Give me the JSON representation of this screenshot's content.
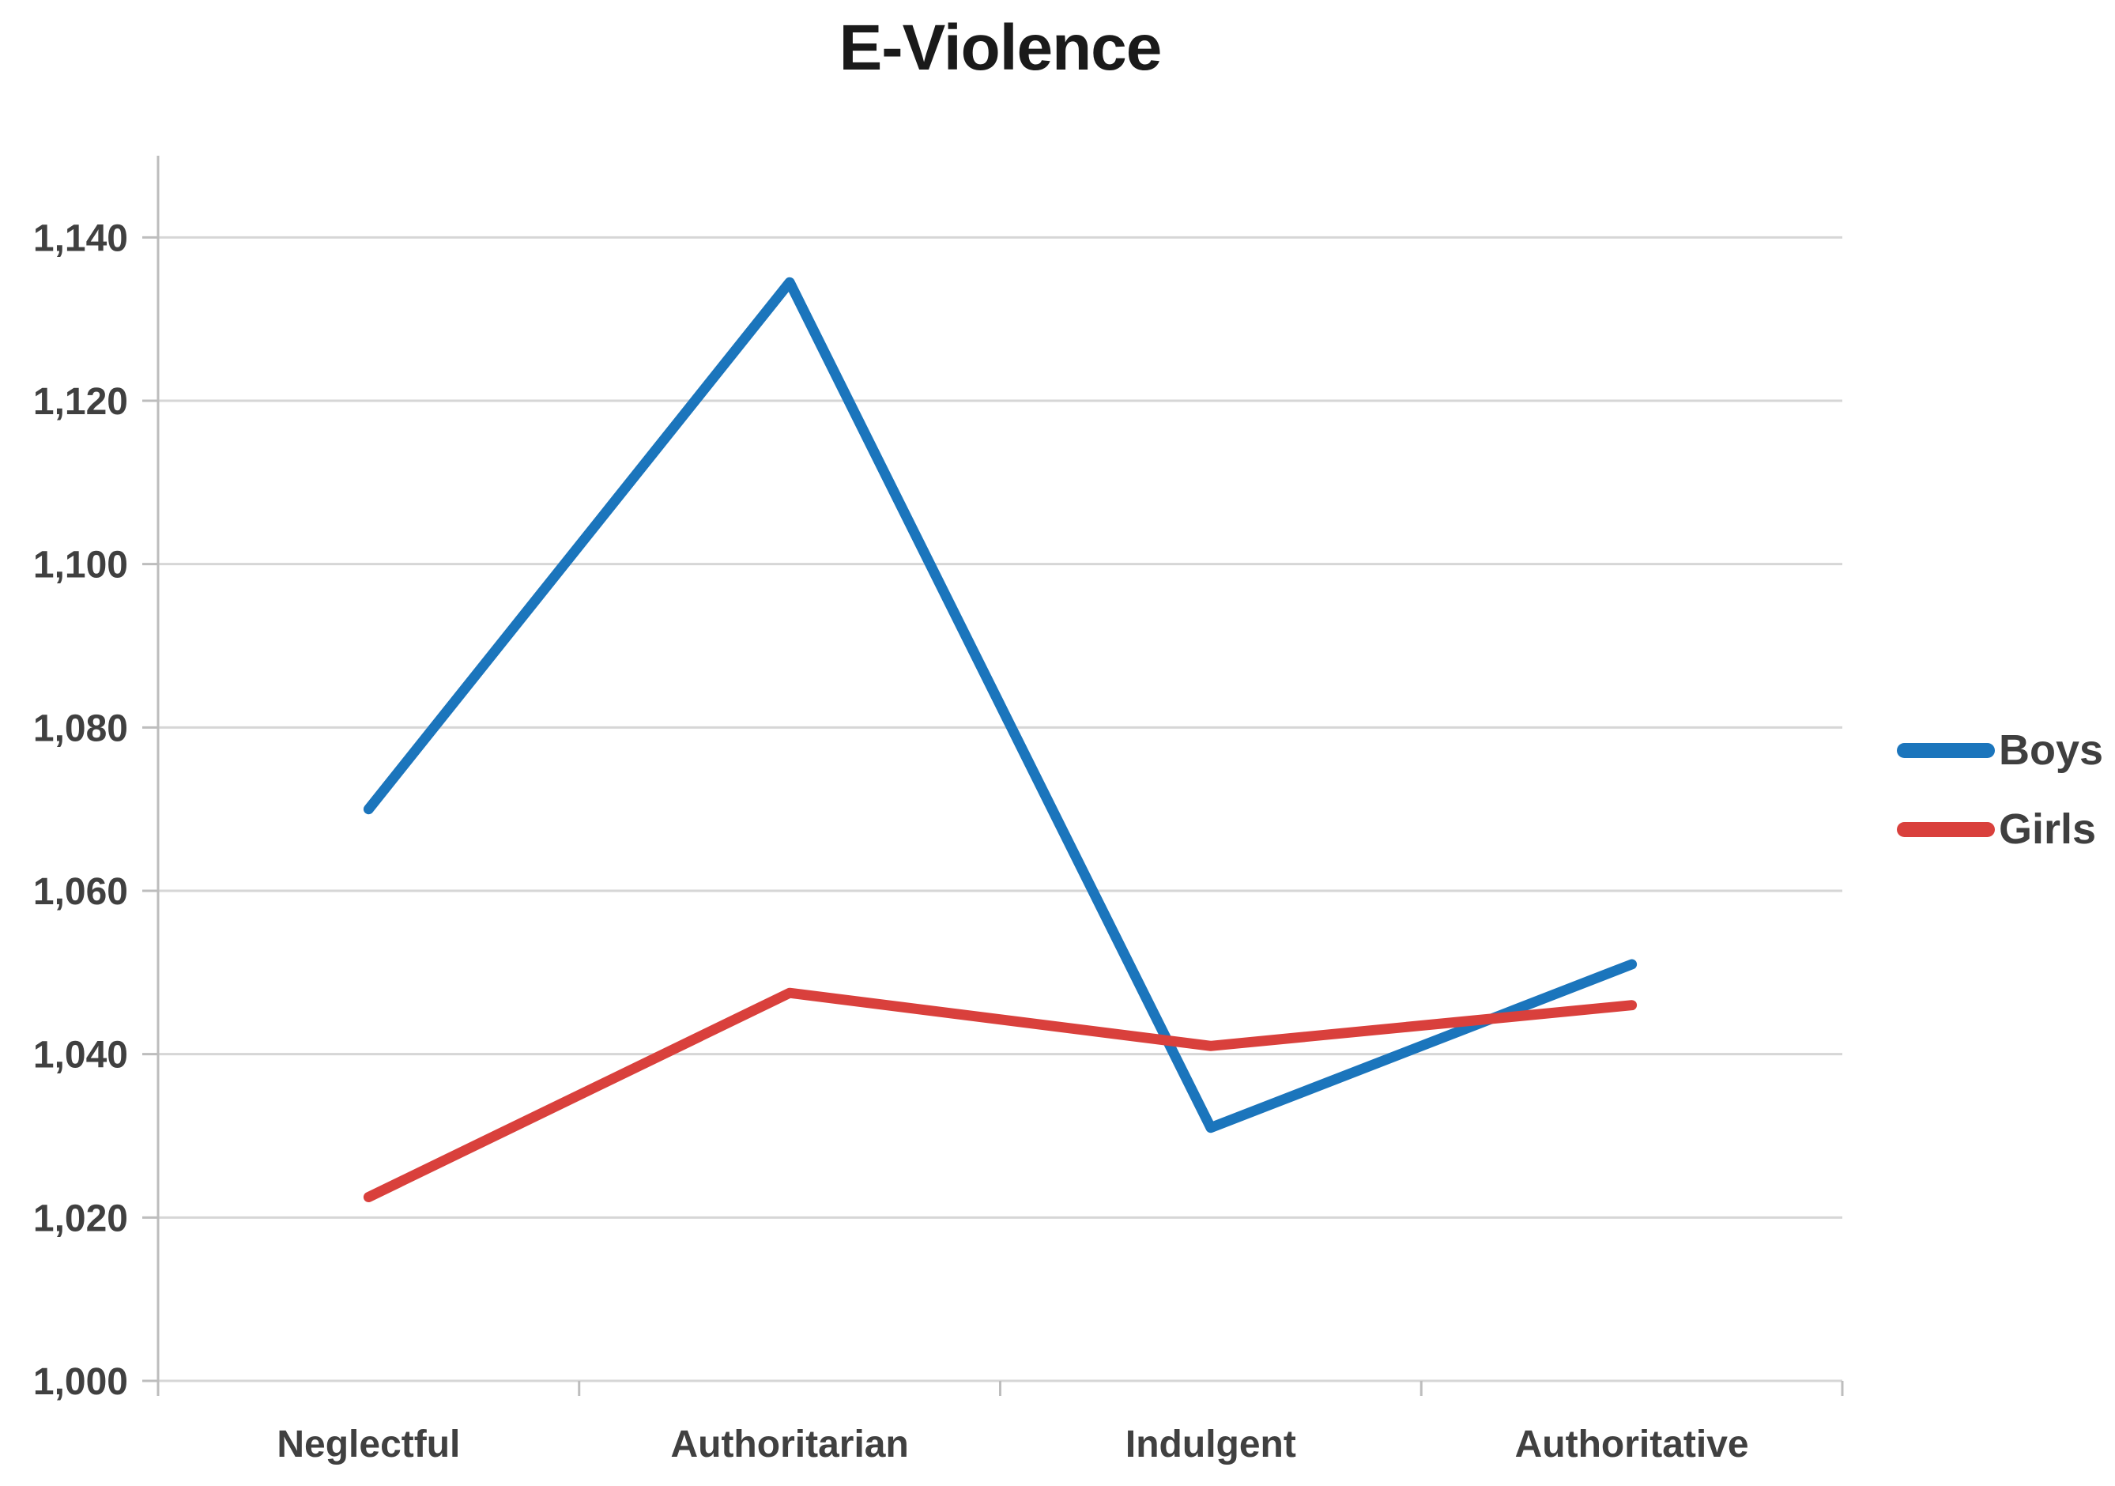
{
  "chart_data": {
    "type": "line",
    "title": "E-Violence",
    "categories": [
      "Neglectful",
      "Authoritarian",
      "Indulgent",
      "Authoritative"
    ],
    "series": [
      {
        "name": "Boys",
        "color": "#1b75bc",
        "values": [
          1070,
          1134.5,
          1031,
          1051
        ]
      },
      {
        "name": "Girls",
        "color": "#d9403c",
        "values": [
          1022.5,
          1047.5,
          1041,
          1046
        ]
      }
    ],
    "xlabel": "",
    "ylabel": "",
    "ylim": [
      1000,
      1150
    ],
    "yticks": [
      1000,
      1020,
      1040,
      1060,
      1080,
      1100,
      1120,
      1140
    ],
    "ytick_labels": [
      "1,000",
      "1,020",
      "1,040",
      "1,060",
      "1,080",
      "1,100",
      "1,120",
      "1,140"
    ],
    "grid": true,
    "legend_position": "right",
    "legend_labels": [
      "Boys",
      "Girls"
    ]
  },
  "colors": {
    "gridline": "#d6d6d6",
    "axis": "#bdbdbd",
    "title_text": "#1a1a1a",
    "tick_text": "#404040",
    "legend_text": "#3f3f3f",
    "background": "#ffffff"
  }
}
